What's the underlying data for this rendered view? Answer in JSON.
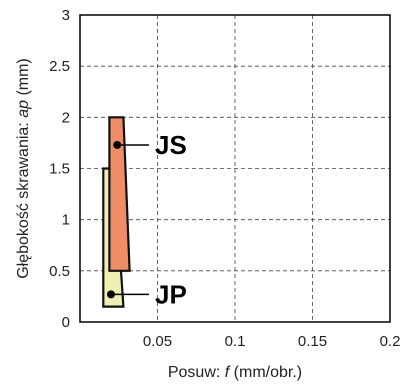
{
  "chart_data": {
    "type": "area",
    "xlabel_prefix": "Posuw: ",
    "xlabel_var": "f",
    "xlabel_suffix": " (mm/obr.)",
    "ylabel_prefix": "Głębokość skrawania: ",
    "ylabel_var": "ap",
    "ylabel_suffix": " (mm)",
    "xlim": [
      0,
      0.2
    ],
    "ylim": [
      0,
      3
    ],
    "x_ticks": [
      0.05,
      0.1,
      0.15,
      0.2
    ],
    "x_tick_labels": [
      "0.05",
      "0.1",
      "0.15",
      "0.2"
    ],
    "y_ticks": [
      0,
      0.5,
      1,
      1.5,
      2,
      2.5,
      3
    ],
    "y_tick_labels": [
      "0",
      "0.5",
      "1",
      "1.5",
      "2",
      "2.5",
      "3"
    ],
    "grid": true,
    "regions": [
      {
        "name": "JP",
        "color": "#eef0b2",
        "polygon": [
          [
            0.015,
            0.15
          ],
          [
            0.028,
            0.15
          ],
          [
            0.022,
            1.5
          ],
          [
            0.015,
            1.5
          ]
        ],
        "marker": [
          0.02,
          0.27
        ]
      },
      {
        "name": "JS",
        "color": "#ef8d66",
        "polygon": [
          [
            0.019,
            0.5
          ],
          [
            0.032,
            0.5
          ],
          [
            0.028,
            2.0
          ],
          [
            0.019,
            2.0
          ]
        ],
        "marker": [
          0.024,
          1.73
        ]
      }
    ]
  }
}
